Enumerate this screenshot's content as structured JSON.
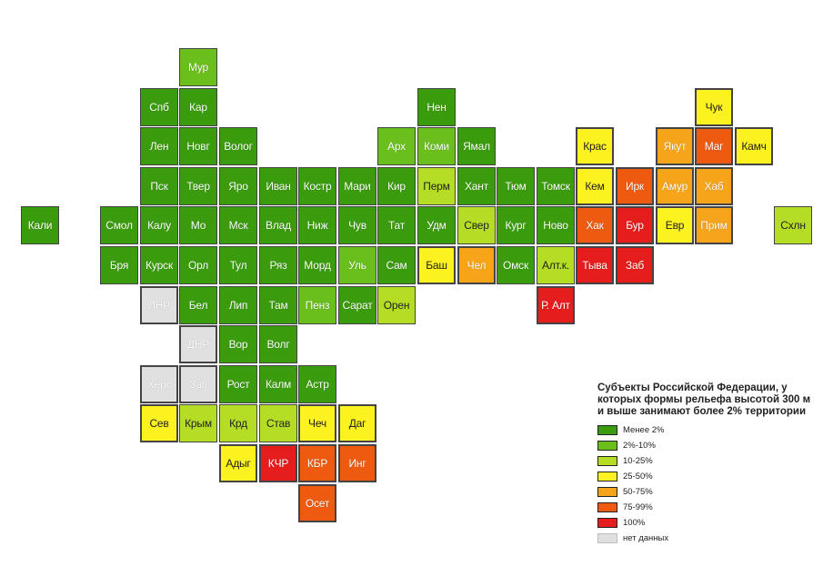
{
  "classes": [
    {
      "label": "Менее 2%",
      "color": "#3a9c0c"
    },
    {
      "label": "2%-10%",
      "color": "#6abf1c"
    },
    {
      "label": "10-25%",
      "color": "#b6dd26"
    },
    {
      "label": "25-50%",
      "color": "#fcf220"
    },
    {
      "label": "50-75%",
      "color": "#f6a51b"
    },
    {
      "label": "75-99%",
      "color": "#ee5b10"
    },
    {
      "label": "100%",
      "color": "#e61d1d"
    },
    {
      "label": "нет данных",
      "color": "#e0e0e0"
    }
  ],
  "legend": {
    "title": "Субъекты Российской Федерации, у которых формы рельефа высотой 300 м и выше занимают более 2% территории"
  },
  "regions": [
    {
      "label": "Мур",
      "col": 4,
      "row": 0,
      "cls": 1
    },
    {
      "label": "Спб",
      "col": 3,
      "row": 1,
      "cls": 0
    },
    {
      "label": "Кар",
      "col": 4,
      "row": 1,
      "cls": 0
    },
    {
      "label": "Нен",
      "col": 10,
      "row": 1,
      "cls": 0
    },
    {
      "label": "Чук",
      "col": 17,
      "row": 1,
      "cls": 3
    },
    {
      "label": "Лен",
      "col": 3,
      "row": 2,
      "cls": 0
    },
    {
      "label": "Новг",
      "col": 4,
      "row": 2,
      "cls": 0
    },
    {
      "label": "Волог",
      "col": 5,
      "row": 2,
      "cls": 0
    },
    {
      "label": "Арх",
      "col": 9,
      "row": 2,
      "cls": 1
    },
    {
      "label": "Коми",
      "col": 10,
      "row": 2,
      "cls": 1
    },
    {
      "label": "Ямал",
      "col": 11,
      "row": 2,
      "cls": 0
    },
    {
      "label": "Крас",
      "col": 14,
      "row": 2,
      "cls": 3
    },
    {
      "label": "Якут",
      "col": 16,
      "row": 2,
      "cls": 4
    },
    {
      "label": "Маг",
      "col": 17,
      "row": 2,
      "cls": 5
    },
    {
      "label": "Камч",
      "col": 18,
      "row": 2,
      "cls": 3
    },
    {
      "label": "Пск",
      "col": 3,
      "row": 3,
      "cls": 0
    },
    {
      "label": "Твер",
      "col": 4,
      "row": 3,
      "cls": 0
    },
    {
      "label": "Яро",
      "col": 5,
      "row": 3,
      "cls": 0
    },
    {
      "label": "Иван",
      "col": 6,
      "row": 3,
      "cls": 0
    },
    {
      "label": "Костр",
      "col": 7,
      "row": 3,
      "cls": 0
    },
    {
      "label": "Мари",
      "col": 8,
      "row": 3,
      "cls": 0
    },
    {
      "label": "Кир",
      "col": 9,
      "row": 3,
      "cls": 0
    },
    {
      "label": "Перм",
      "col": 10,
      "row": 3,
      "cls": 2
    },
    {
      "label": "Хант",
      "col": 11,
      "row": 3,
      "cls": 0
    },
    {
      "label": "Тюм",
      "col": 12,
      "row": 3,
      "cls": 0
    },
    {
      "label": "Томск",
      "col": 13,
      "row": 3,
      "cls": 0
    },
    {
      "label": "Кем",
      "col": 14,
      "row": 3,
      "cls": 3
    },
    {
      "label": "Ирк",
      "col": 15,
      "row": 3,
      "cls": 5
    },
    {
      "label": "Амур",
      "col": 16,
      "row": 3,
      "cls": 4
    },
    {
      "label": "Хаб",
      "col": 17,
      "row": 3,
      "cls": 4
    },
    {
      "label": "Кали",
      "col": 0,
      "row": 4,
      "cls": 0
    },
    {
      "label": "Смол",
      "col": 2,
      "row": 4,
      "cls": 0
    },
    {
      "label": "Калу",
      "col": 3,
      "row": 4,
      "cls": 0
    },
    {
      "label": "Мо",
      "col": 4,
      "row": 4,
      "cls": 0
    },
    {
      "label": "Мск",
      "col": 5,
      "row": 4,
      "cls": 0
    },
    {
      "label": "Влад",
      "col": 6,
      "row": 4,
      "cls": 0
    },
    {
      "label": "Ниж",
      "col": 7,
      "row": 4,
      "cls": 0
    },
    {
      "label": "Чув",
      "col": 8,
      "row": 4,
      "cls": 0
    },
    {
      "label": "Тат",
      "col": 9,
      "row": 4,
      "cls": 0
    },
    {
      "label": "Удм",
      "col": 10,
      "row": 4,
      "cls": 0
    },
    {
      "label": "Свер",
      "col": 11,
      "row": 4,
      "cls": 2
    },
    {
      "label": "Кург",
      "col": 12,
      "row": 4,
      "cls": 0
    },
    {
      "label": "Ново",
      "col": 13,
      "row": 4,
      "cls": 0
    },
    {
      "label": "Хак",
      "col": 14,
      "row": 4,
      "cls": 5
    },
    {
      "label": "Бур",
      "col": 15,
      "row": 4,
      "cls": 6
    },
    {
      "label": "Евр",
      "col": 16,
      "row": 4,
      "cls": 3
    },
    {
      "label": "Прим",
      "col": 17,
      "row": 4,
      "cls": 4
    },
    {
      "label": "Схлн",
      "col": 19,
      "row": 4,
      "cls": 2
    },
    {
      "label": "Бря",
      "col": 2,
      "row": 5,
      "cls": 0
    },
    {
      "label": "Курск",
      "col": 3,
      "row": 5,
      "cls": 0
    },
    {
      "label": "Орл",
      "col": 4,
      "row": 5,
      "cls": 0
    },
    {
      "label": "Тул",
      "col": 5,
      "row": 5,
      "cls": 0
    },
    {
      "label": "Ряз",
      "col": 6,
      "row": 5,
      "cls": 0
    },
    {
      "label": "Морд",
      "col": 7,
      "row": 5,
      "cls": 0
    },
    {
      "label": "Уль",
      "col": 8,
      "row": 5,
      "cls": 1
    },
    {
      "label": "Сам",
      "col": 9,
      "row": 5,
      "cls": 0
    },
    {
      "label": "Баш",
      "col": 10,
      "row": 5,
      "cls": 3
    },
    {
      "label": "Чел",
      "col": 11,
      "row": 5,
      "cls": 4
    },
    {
      "label": "Омск",
      "col": 12,
      "row": 5,
      "cls": 0
    },
    {
      "label": "Алт.к.",
      "col": 13,
      "row": 5,
      "cls": 2
    },
    {
      "label": "Тыва",
      "col": 14,
      "row": 5,
      "cls": 6
    },
    {
      "label": "Заб",
      "col": 15,
      "row": 5,
      "cls": 6
    },
    {
      "label": "ЛНР",
      "col": 3,
      "row": 6,
      "cls": 7
    },
    {
      "label": "Бел",
      "col": 4,
      "row": 6,
      "cls": 0
    },
    {
      "label": "Лип",
      "col": 5,
      "row": 6,
      "cls": 0
    },
    {
      "label": "Там",
      "col": 6,
      "row": 6,
      "cls": 0
    },
    {
      "label": "Пенз",
      "col": 7,
      "row": 6,
      "cls": 1
    },
    {
      "label": "Сарат",
      "col": 8,
      "row": 6,
      "cls": 0
    },
    {
      "label": "Орен",
      "col": 9,
      "row": 6,
      "cls": 2
    },
    {
      "label": "Р. Алт",
      "col": 13,
      "row": 6,
      "cls": 6
    },
    {
      "label": "ДНР",
      "col": 4,
      "row": 7,
      "cls": 7
    },
    {
      "label": "Вор",
      "col": 5,
      "row": 7,
      "cls": 0
    },
    {
      "label": "Волг",
      "col": 6,
      "row": 7,
      "cls": 0
    },
    {
      "label": "Херс",
      "col": 3,
      "row": 8,
      "cls": 7
    },
    {
      "label": "Зап",
      "col": 4,
      "row": 8,
      "cls": 7
    },
    {
      "label": "Рост",
      "col": 5,
      "row": 8,
      "cls": 0
    },
    {
      "label": "Калм",
      "col": 6,
      "row": 8,
      "cls": 0
    },
    {
      "label": "Астр",
      "col": 7,
      "row": 8,
      "cls": 0
    },
    {
      "label": "Сев",
      "col": 3,
      "row": 9,
      "cls": 3
    },
    {
      "label": "Крым",
      "col": 4,
      "row": 9,
      "cls": 2
    },
    {
      "label": "Крд",
      "col": 5,
      "row": 9,
      "cls": 2
    },
    {
      "label": "Став",
      "col": 6,
      "row": 9,
      "cls": 2
    },
    {
      "label": "Чеч",
      "col": 7,
      "row": 9,
      "cls": 3
    },
    {
      "label": "Даг",
      "col": 8,
      "row": 9,
      "cls": 3
    },
    {
      "label": "Адыг",
      "col": 5,
      "row": 10,
      "cls": 3
    },
    {
      "label": "КЧР",
      "col": 6,
      "row": 10,
      "cls": 6
    },
    {
      "label": "КБР",
      "col": 7,
      "row": 10,
      "cls": 5
    },
    {
      "label": "Инг",
      "col": 8,
      "row": 10,
      "cls": 5
    },
    {
      "label": "Осет",
      "col": 7,
      "row": 11,
      "cls": 5
    }
  ]
}
